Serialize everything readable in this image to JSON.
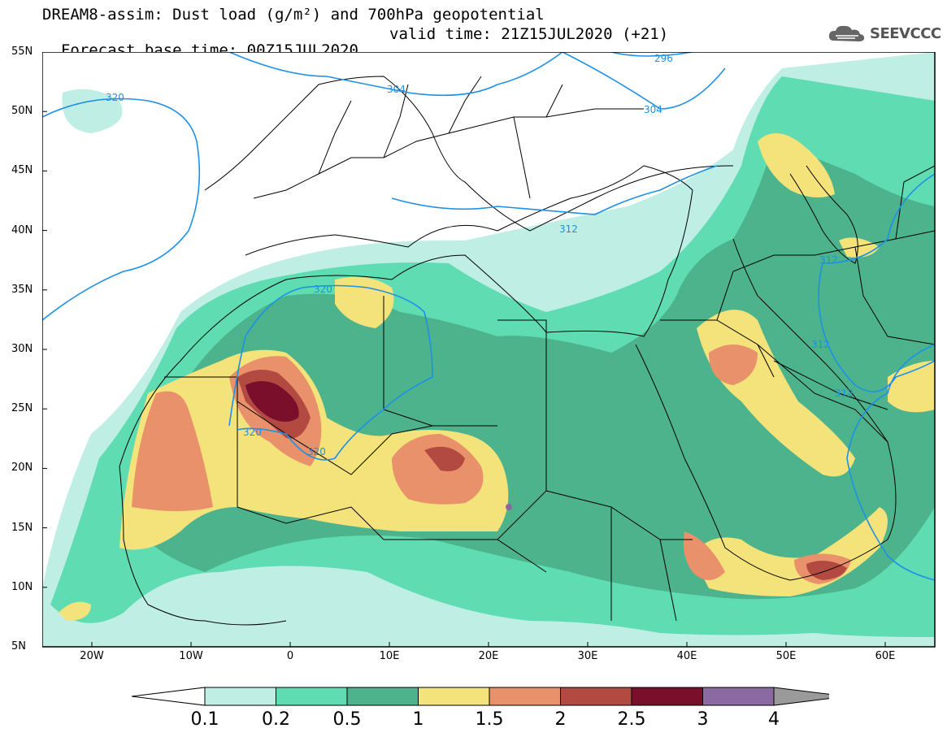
{
  "header": {
    "title_line1": "DREAM8-assim: Dust load (g/m²) and 700hPa geopotential",
    "title_line2_left": "Forecast base time: 00Z15JUL2020",
    "title_line2_right": "valid time: 21Z15JUL2020 (+21)"
  },
  "logo": {
    "text": "SEEVCCC",
    "icon": "cloud-icon"
  },
  "map": {
    "lat_labels": [
      "55N",
      "50N",
      "45N",
      "40N",
      "35N",
      "30N",
      "25N",
      "20N",
      "15N",
      "10N",
      "5N"
    ],
    "lon_labels": [
      "20W",
      "10W",
      "0",
      "10E",
      "20E",
      "30E",
      "40E",
      "50E",
      "60E"
    ],
    "contour_labels": [
      {
        "id": "c296",
        "text": "296"
      },
      {
        "id": "c304a",
        "text": "304"
      },
      {
        "id": "c304b",
        "text": "304"
      },
      {
        "id": "c320a",
        "text": "320"
      },
      {
        "id": "c312a",
        "text": "312"
      },
      {
        "id": "c312b",
        "text": "312"
      },
      {
        "id": "c312c",
        "text": "312"
      },
      {
        "id": "c312d",
        "text": "312"
      },
      {
        "id": "c320b",
        "text": "320"
      },
      {
        "id": "c320c",
        "text": "320"
      },
      {
        "id": "c320d",
        "text": "320"
      }
    ],
    "colors": {
      "c01": "#bfeee4",
      "c02": "#5fdcb2",
      "c05": "#4cb38d",
      "c1": "#f4e27a",
      "c15": "#e8916a",
      "c2": "#b24a41",
      "c25": "#7a0f2b",
      "c3": "#8a6aa0",
      "c4": "#9a9a9a",
      "contour": "#1e90e6",
      "border": "#000000"
    }
  },
  "colorbar": {
    "labels": [
      "0.1",
      "0.2",
      "0.5",
      "1",
      "1.5",
      "2",
      "2.5",
      "3",
      "4"
    ],
    "colors": [
      "#ffffff",
      "#bfeee4",
      "#5fdcb2",
      "#4cb38d",
      "#f4e27a",
      "#e8916a",
      "#b24a41",
      "#7a0f2b",
      "#8a6aa0",
      "#9a9a9a"
    ]
  }
}
